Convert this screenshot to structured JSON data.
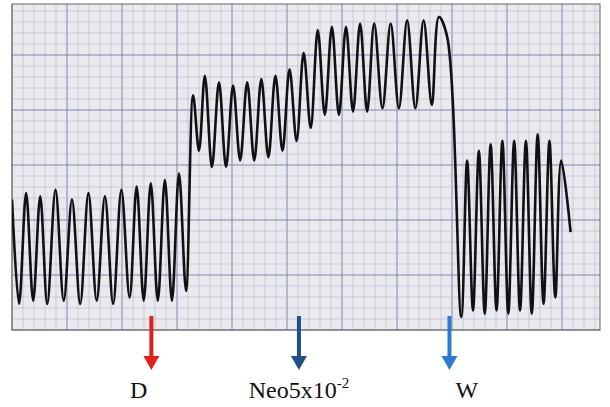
{
  "chart_data": {
    "type": "line",
    "color": "#111111",
    "tick_labels": false,
    "xlim": [
      0,
      100
    ],
    "ylim": [
      0,
      100
    ],
    "x": [
      0,
      1.2,
      2.4,
      3.6,
      4.8,
      6,
      7.4,
      8.8,
      10.2,
      11.6,
      13,
      14.4,
      15.8,
      17.2,
      18.6,
      20,
      21.2,
      22.4,
      23.6,
      24.8,
      26,
      27.2,
      28.4,
      29.6,
      30.8,
      31.8,
      32.8,
      34,
      35.2,
      36.4,
      37.6,
      38.8,
      40,
      41.2,
      42.4,
      43.6,
      44.8,
      46,
      47.2,
      48.4,
      49.6,
      50.8,
      52,
      53.2,
      54.4,
      55.6,
      56.8,
      58,
      59.2,
      60.4,
      61.6,
      63,
      64.4,
      65.8,
      67.2,
      68.6,
      70,
      71.4,
      72.6,
      74,
      76.4,
      77.4,
      78.4,
      79.4,
      80.4,
      81.4,
      82.4,
      83.4,
      84.4,
      85.4,
      86.4,
      87.4,
      88.4,
      89.4,
      90.4,
      91.4,
      92.4,
      93.4,
      95
    ],
    "values": [
      40,
      8,
      42,
      9,
      41,
      8,
      43,
      9,
      40,
      8,
      42,
      9,
      41,
      8,
      43,
      10,
      44,
      9,
      45,
      9,
      46,
      9,
      48,
      12,
      72,
      55,
      78,
      50,
      76,
      50,
      75,
      52,
      76,
      52,
      77,
      53,
      78,
      55,
      80,
      58,
      85,
      62,
      92,
      66,
      93,
      66,
      93,
      67,
      94,
      67,
      94,
      68,
      94,
      68,
      95,
      68,
      95,
      69,
      96,
      90,
      4,
      52,
      6,
      55,
      5,
      57,
      6,
      58,
      5,
      58,
      6,
      58,
      5,
      60,
      8,
      58,
      10,
      52,
      30
    ],
    "annotations": [
      {
        "text": "D",
        "x": 23.7,
        "color": "#e0201a"
      },
      {
        "text": "Neo5x10",
        "superscript": "-2",
        "x": 48.8,
        "color": "#1f4f86"
      },
      {
        "text": "W",
        "x": 74.4,
        "color": "#2b7bd0"
      }
    ]
  }
}
